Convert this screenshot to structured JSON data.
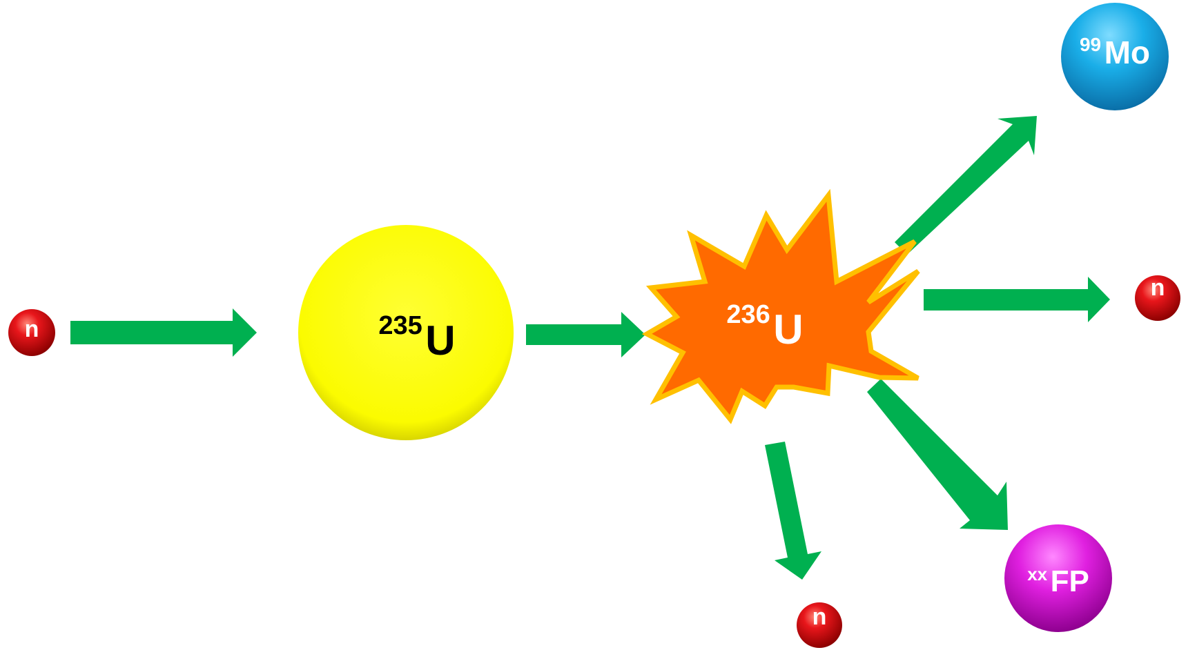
{
  "nodes": {
    "neutron_in": {
      "label": "n",
      "color": "#e0161b"
    },
    "u235": {
      "mass": "235",
      "symbol": "U",
      "color": "#ffff0d",
      "text_color": "#000000"
    },
    "u236": {
      "mass": "236",
      "symbol": "U",
      "color": "#ff6a00",
      "outline": "#ffc000",
      "text_color": "#ffffff"
    },
    "mo99": {
      "mass": "99",
      "symbol": "Mo",
      "color": "#1aaee8",
      "text_color": "#ffffff"
    },
    "neutron_right": {
      "label": "n",
      "color": "#e0161b"
    },
    "neutron_bottom": {
      "label": "n",
      "color": "#e0161b"
    },
    "fission_product": {
      "mass": "xx",
      "symbol": "FP",
      "color": "#e020e0",
      "text_color": "#ffffff"
    }
  },
  "arrow_color": "#00b050"
}
